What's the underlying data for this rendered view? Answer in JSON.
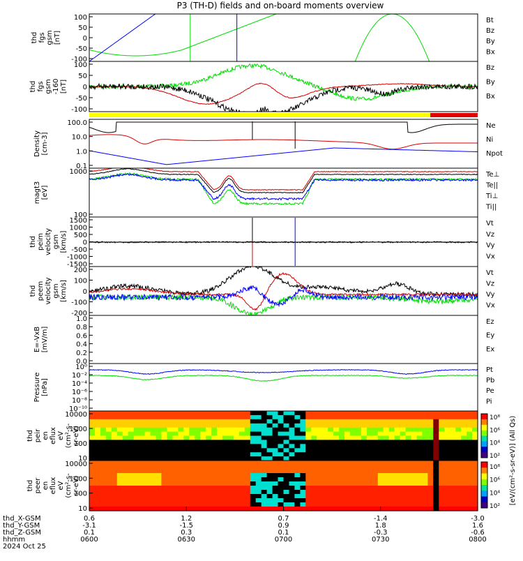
{
  "title": "P3 (TH-D) fields and on-board moments overview",
  "colors": {
    "black": "#000000",
    "red": "#d40000",
    "green": "#00dd00",
    "blue": "#0000ff",
    "yellow": "#ffff00",
    "barRed": "#e00000"
  },
  "chart_data": {
    "type": "line",
    "panels": [
      {
        "ylabel": [
          "thd",
          "fgs",
          "gsm",
          "[nT]"
        ],
        "yticks": [
          "100",
          "50",
          "0",
          "-50",
          "-100"
        ],
        "ylim": [
          -100,
          100
        ],
        "legend": [
          [
            "Bt",
            "black"
          ],
          [
            "Bz",
            "red"
          ],
          [
            "By",
            "green"
          ],
          [
            "Bx",
            "blue"
          ]
        ]
      },
      {
        "ylabel": [
          "thd",
          "fgs",
          "gsm",
          "-160",
          "[nT]"
        ],
        "yticks": [
          "100",
          "50",
          "0",
          "-50",
          "-100"
        ],
        "ylim": [
          -120,
          100
        ],
        "legend": [
          [
            "Bz",
            "red"
          ],
          [
            "By",
            "green"
          ],
          [
            "Bx",
            "black"
          ]
        ]
      },
      {
        "ylabel": [
          "Density",
          "[cm-3]"
        ],
        "yticks": [
          "100.0",
          "10.0",
          "1.0",
          "0.1"
        ],
        "log": true,
        "legend": [
          [
            "Ne",
            "red"
          ],
          [
            "Ni",
            "black"
          ],
          [
            "Npot",
            "blue"
          ]
        ]
      },
      {
        "ylabel": [
          "magt3",
          "[eV]"
        ],
        "yticks": [
          "1000",
          "100"
        ],
        "log": true,
        "legend": [
          [
            "Te⊥",
            "red"
          ],
          [
            "Te||",
            "black"
          ],
          [
            "Ti⊥",
            "blue"
          ],
          [
            "Ti||",
            "green"
          ]
        ]
      },
      {
        "ylabel": [
          "thd",
          "peim",
          "velocity",
          "gsm",
          "[km/s]"
        ],
        "yticks": [
          "1500",
          "1000",
          "500",
          "0",
          "-500",
          "-1000",
          "-1500"
        ],
        "ylim": [
          -1500,
          1500
        ],
        "legend": [
          [
            "Vt",
            "black"
          ],
          [
            "Vz",
            "red"
          ],
          [
            "Vy",
            "green"
          ],
          [
            "Vx",
            "blue"
          ]
        ]
      },
      {
        "ylabel": [
          "thd",
          "peem",
          "velocity",
          "gsm",
          "[km/s]"
        ],
        "yticks": [
          "200",
          "100",
          "0",
          "-100",
          "-200"
        ],
        "ylim": [
          -200,
          250
        ],
        "legend": [
          [
            "Vt",
            "black"
          ],
          [
            "Vz",
            "red"
          ],
          [
            "Vy",
            "green"
          ],
          [
            "Vx",
            "blue"
          ]
        ]
      },
      {
        "ylabel": [
          "E=-VxB",
          "[mV/m]"
        ],
        "yticks": [
          "1.0",
          "0.8",
          "0.6",
          "0.4",
          "0.2",
          "0.0"
        ],
        "ylim": [
          0,
          1
        ],
        "legend": [
          [
            "Ez",
            "red"
          ],
          [
            "Ey",
            "green"
          ],
          [
            "Ex",
            "blue"
          ]
        ]
      },
      {
        "ylabel": [
          "Pressure",
          "[nPa]"
        ],
        "yticks": [
          "10⁰",
          "10⁻²",
          "10⁻⁴",
          "10⁻⁶",
          "10⁻⁸",
          "10⁻¹⁰"
        ],
        "log": true,
        "legend": [
          [
            "Pt",
            "black"
          ],
          [
            "Pb",
            "red"
          ],
          [
            "Pe",
            "green"
          ],
          [
            "Pi",
            "blue"
          ]
        ]
      },
      {
        "ylabel": [
          "thd",
          "peir",
          "en",
          "eflux",
          "eV",
          "(cm²-s-",
          "sr-eV)"
        ],
        "yticks": [
          "10000",
          "1000",
          "100",
          "10"
        ],
        "type": "spectrogram",
        "colorbar": [
          "10⁸",
          "10⁶",
          "10⁴",
          "10²"
        ]
      },
      {
        "ylabel": [
          "thd",
          "peer",
          "en",
          "eflux",
          "eV",
          "(cm²-s-",
          "sr-eV)"
        ],
        "yticks": [
          "10000",
          "1000",
          "100",
          "10"
        ],
        "type": "spectrogram",
        "colorbar": [
          "10⁸",
          "10⁶",
          "10⁴",
          "10²"
        ]
      }
    ],
    "colorbar_label": "[eV/(cm²-s-sr-eV)] (All Qs)",
    "x_axis": {
      "rows": [
        {
          "label": "thd_X-GSM",
          "values": [
            "0.6",
            "1.2",
            "0.7",
            "-1.4",
            "-3.0"
          ]
        },
        {
          "label": "thd_Y-GSM",
          "values": [
            "-3.1",
            "-1.5",
            "0.9",
            "1.8",
            "1.6"
          ]
        },
        {
          "label": "thd_Z-GSM",
          "values": [
            "0.1",
            "0.3",
            "0.1",
            "-0.3",
            "-0.6"
          ]
        },
        {
          "label": "hhmm",
          "values": [
            "0600",
            "0630",
            "0700",
            "0730",
            "0800"
          ]
        }
      ],
      "date": "2024 Oct 25"
    }
  }
}
